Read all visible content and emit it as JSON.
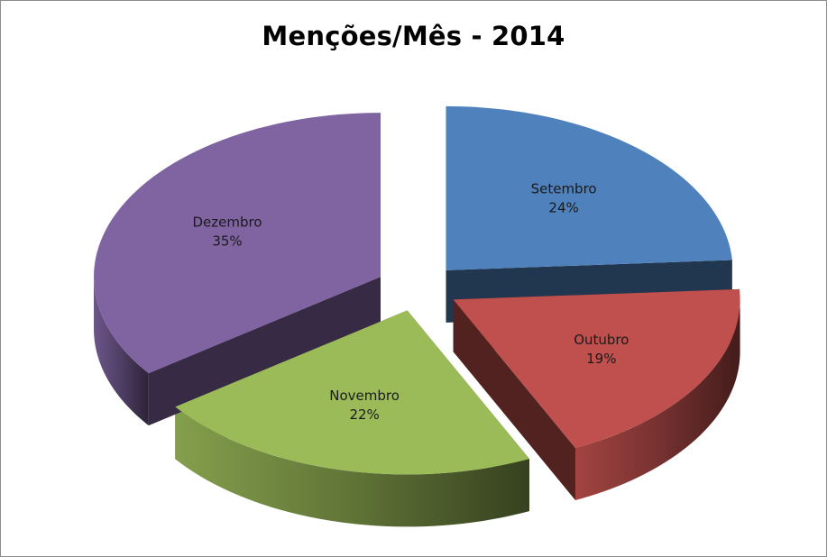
{
  "chart_data": {
    "type": "pie",
    "title": "Menções/Mês - 2014",
    "slices": [
      {
        "label": "Setembro",
        "value": 24,
        "percent_label": "24%",
        "color": "#4f81bd"
      },
      {
        "label": "Outubro",
        "value": 19,
        "percent_label": "19%",
        "color": "#c0504d"
      },
      {
        "label": "Novembro",
        "value": 22,
        "percent_label": "22%",
        "color": "#9bbb59"
      },
      {
        "label": "Dezembro",
        "value": 35,
        "percent_label": "35%",
        "color": "#8064a2"
      }
    ],
    "style": "3d-exploded",
    "legend": "none",
    "data_labels": "category-and-percent"
  }
}
